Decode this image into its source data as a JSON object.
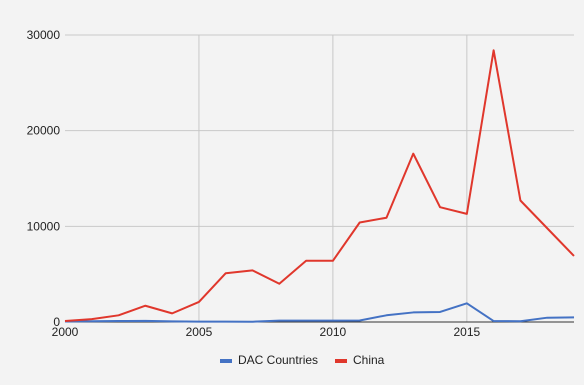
{
  "chart_data": {
    "type": "line",
    "x": [
      2000,
      2001,
      2002,
      2003,
      2004,
      2005,
      2006,
      2007,
      2008,
      2009,
      2010,
      2011,
      2012,
      2013,
      2014,
      2015,
      2016,
      2017,
      2018,
      2019
    ],
    "series": [
      {
        "name": "DAC Countries",
        "color": "#4472c4",
        "values": [
          50,
          80,
          100,
          120,
          60,
          40,
          40,
          30,
          150,
          150,
          150,
          160,
          700,
          1000,
          1050,
          1950,
          100,
          80,
          450,
          480
        ]
      },
      {
        "name": "China",
        "color": "#e0372c",
        "values": [
          100,
          300,
          700,
          1700,
          900,
          2100,
          5100,
          5400,
          4000,
          6400,
          6400,
          10400,
          10900,
          17600,
          12000,
          11300,
          28400,
          12700,
          9800,
          6900
        ]
      }
    ],
    "x_ticks": [
      "2000",
      "2005",
      "2010",
      "2015"
    ],
    "y_ticks": [
      "0",
      "10000",
      "20000",
      "30000"
    ],
    "xlim": [
      2000,
      2019
    ],
    "ylim": [
      0,
      30000
    ],
    "grid": true,
    "legend_position": "bottom",
    "title": "",
    "xlabel": "",
    "ylabel": ""
  }
}
